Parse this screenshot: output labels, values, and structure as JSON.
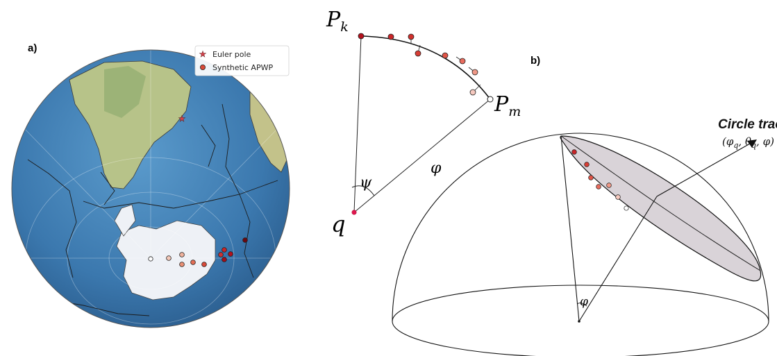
{
  "panel_a": {
    "label": "a)",
    "legend": {
      "euler_pole": "Euler pole",
      "synthetic_apwp": "Synthetic APWP"
    }
  },
  "panel_b": {
    "label": "b)",
    "circle_trace_title": "Circle trace",
    "circle_trace_params": "(φq, θq, φ)",
    "sector_labels": {
      "pk": "P",
      "pk_sub": "k",
      "pm": "P",
      "pm_sub": "m",
      "q": "q",
      "psi": "ψ",
      "varphi": "φ"
    },
    "cone_angle_label": "φ"
  },
  "colors": {
    "ocean": "#3f7fb6",
    "land": "#b9c58e",
    "ice": "#eef1f6",
    "apwp_dark": "#b3101c",
    "apwp_light": "#f3c7b7",
    "euler_star": "#d9434d",
    "ellipse_fill": "#d9d3d8"
  }
}
